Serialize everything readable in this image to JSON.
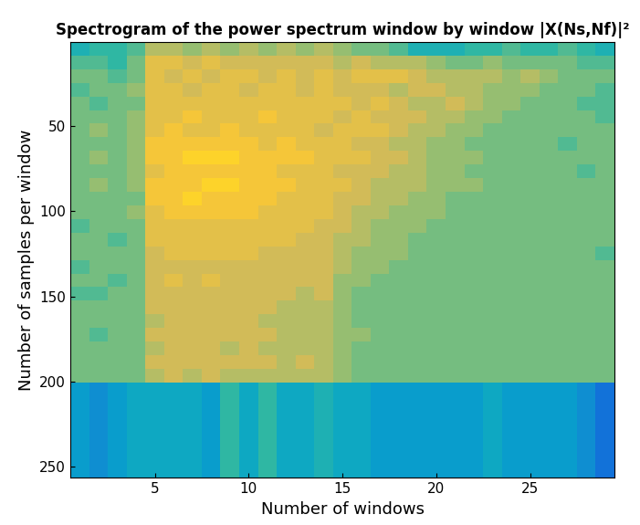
{
  "chart_data": {
    "type": "heatmap",
    "title": "Spectrogram of the power spectrum window by window |X(Ns,Nf)|²",
    "x_label": "Number of windows",
    "y_label": "Number of samples per window",
    "xlim": [
      0.5,
      29.5
    ],
    "ylim": [
      256.5,
      0.5
    ],
    "xticks": [
      5,
      10,
      15,
      20,
      25
    ],
    "yticks": [
      50,
      100,
      150,
      200,
      250
    ],
    "grid": false,
    "x_edges": [
      0.5,
      1.5,
      2.5,
      3.5,
      4.5,
      5.5,
      6.5,
      7.5,
      8.5,
      9.5,
      10.5,
      11.5,
      12.5,
      13.5,
      14.5,
      15.5,
      16.5,
      17.5,
      18.5,
      19.5,
      20.5,
      21.5,
      22.5,
      23.5,
      24.5,
      25.5,
      26.5,
      27.5,
      28.5,
      29.5
    ],
    "y_edges": [
      0.5,
      8.5,
      16.5,
      24.5,
      32.5,
      40.5,
      48.5,
      56.5,
      64.5,
      72.5,
      80.5,
      88.5,
      96.5,
      104.5,
      112.5,
      120.5,
      128.5,
      136.5,
      144.5,
      152.5,
      160.5,
      168.5,
      176.5,
      184.5,
      192.5,
      200.5,
      208.5,
      216.5,
      224.5,
      232.5,
      240.5,
      248.5,
      256.5
    ],
    "color_range": [
      0,
      10
    ],
    "cells": [
      [
        4.5,
        5,
        5,
        5.5,
        7,
        7,
        6.5,
        7,
        6.5,
        7,
        6.5,
        7,
        6.5,
        7,
        6.5,
        6,
        6,
        5.5,
        4.5,
        4.5,
        4.5,
        5,
        5,
        5.5,
        5,
        5,
        5.5,
        5,
        4.5
      ],
      [
        5.5,
        5.5,
        5,
        6,
        8,
        8,
        7.5,
        8,
        7.5,
        7.5,
        7.5,
        7.5,
        7.5,
        7.5,
        7,
        7.5,
        7,
        7,
        7,
        6.5,
        6,
        6,
        6.5,
        6,
        6,
        6,
        6,
        5.5,
        5.5
      ],
      [
        6,
        6,
        5.5,
        6,
        8,
        7.5,
        8,
        7.5,
        8,
        8,
        7.5,
        8,
        7.5,
        8,
        7.5,
        8,
        8,
        8,
        7.5,
        7,
        7,
        7,
        7,
        6.5,
        7,
        6.5,
        6,
        6,
        6
      ],
      [
        5.5,
        6,
        6,
        6.5,
        8,
        8,
        7.5,
        8,
        8,
        7.5,
        8,
        8,
        7.5,
        8,
        7.5,
        7.5,
        7.5,
        7,
        7.5,
        7.5,
        7,
        7,
        6.5,
        6.5,
        6.5,
        6,
        6,
        6,
        5.5
      ],
      [
        6,
        5.5,
        6,
        6,
        8,
        8,
        8,
        8,
        8,
        8,
        8,
        8,
        8,
        8,
        8,
        7.5,
        8,
        7.5,
        7,
        7,
        7.5,
        7,
        6.5,
        6.5,
        6,
        6,
        6,
        5.5,
        5.5
      ],
      [
        6,
        6,
        6,
        6.5,
        8,
        8,
        8.5,
        8,
        8,
        8,
        8.5,
        8,
        8,
        8,
        7.5,
        8,
        7.5,
        7.5,
        7.5,
        7,
        7,
        6.5,
        6.5,
        6,
        6,
        6,
        6,
        6,
        5.5
      ],
      [
        6,
        6.5,
        6,
        6.5,
        8,
        8.5,
        8,
        8,
        8.5,
        8,
        8,
        8,
        8,
        7.5,
        8,
        8,
        8,
        7.5,
        7,
        7,
        6.5,
        6.5,
        6,
        6,
        6,
        6,
        6,
        6,
        6
      ],
      [
        6,
        6,
        6,
        6.5,
        8.5,
        8.5,
        8.5,
        8.5,
        8.5,
        8.5,
        8,
        8.5,
        8,
        8,
        8,
        7.5,
        7.5,
        7,
        7,
        6.5,
        6.5,
        6,
        6,
        6,
        6,
        6,
        5.5,
        6,
        6
      ],
      [
        6,
        6.5,
        6,
        6.5,
        8.5,
        8.5,
        9,
        9,
        9,
        8.5,
        8.5,
        8.5,
        8.5,
        8,
        8,
        8,
        7.5,
        7.5,
        7,
        6.5,
        6.5,
        6.5,
        6,
        6,
        6,
        6,
        6,
        6,
        6
      ],
      [
        6,
        6,
        6,
        6.5,
        8,
        8.5,
        8.5,
        8.5,
        8.5,
        8.5,
        8.5,
        8,
        8,
        8,
        7.5,
        7.5,
        7.5,
        7,
        7,
        6.5,
        6.5,
        6,
        6,
        6,
        6,
        6,
        6,
        5.5,
        6
      ],
      [
        6,
        6.5,
        6,
        6.5,
        8.5,
        8.5,
        8.5,
        9,
        9,
        8.5,
        8.5,
        8.5,
        8,
        8,
        8,
        7.5,
        7,
        7,
        7,
        6.5,
        6.5,
        6.5,
        6,
        6,
        6,
        6,
        6,
        6,
        6
      ],
      [
        6,
        6,
        6,
        6,
        8.5,
        8.5,
        9,
        8.5,
        8.5,
        8.5,
        8.5,
        8,
        8,
        8,
        7.5,
        7.5,
        7,
        7,
        6.5,
        6.5,
        6,
        6,
        6,
        6,
        6,
        6,
        6,
        6,
        6
      ],
      [
        6,
        6,
        6,
        6.5,
        8,
        8.5,
        8.5,
        8.5,
        8.5,
        8.5,
        8,
        8,
        8,
        8,
        7.5,
        7,
        7,
        6.5,
        6.5,
        6.5,
        6,
        6,
        6,
        6,
        6,
        6,
        6,
        6,
        6
      ],
      [
        5.5,
        6,
        6,
        6,
        8,
        8,
        8,
        8,
        8,
        8,
        8,
        8,
        8,
        7.5,
        7.5,
        7,
        6.5,
        6.5,
        6.5,
        6,
        6,
        6,
        6,
        6,
        6,
        6,
        6,
        6,
        6
      ],
      [
        6,
        6,
        5.5,
        6,
        8,
        8,
        8,
        8,
        8,
        8,
        8,
        8,
        7.5,
        7.5,
        7,
        7,
        6.5,
        6.5,
        6,
        6,
        6,
        6,
        6,
        6,
        6,
        6,
        6,
        6,
        6
      ],
      [
        6,
        6,
        6,
        6,
        7.5,
        8,
        8,
        8,
        8,
        8,
        7.5,
        7.5,
        7.5,
        7.5,
        7,
        6.5,
        6.5,
        6.5,
        6,
        6,
        6,
        6,
        6,
        6,
        6,
        6,
        6,
        6,
        5.5
      ],
      [
        5.5,
        6,
        6,
        6,
        7.5,
        7.5,
        7.5,
        7.5,
        7.5,
        7.5,
        7.5,
        7.5,
        7.5,
        7.5,
        7,
        6.5,
        6.5,
        6,
        6,
        6,
        6,
        6,
        6,
        6,
        6,
        6,
        6,
        6,
        6
      ],
      [
        6,
        6,
        5.5,
        6,
        7.5,
        8,
        7.5,
        8,
        7.5,
        7.5,
        7.5,
        7.5,
        7.5,
        7.5,
        6.5,
        6.5,
        6,
        6,
        6,
        6,
        6,
        6,
        6,
        6,
        6,
        6,
        6,
        6,
        6
      ],
      [
        5.5,
        5.5,
        6,
        6,
        7.5,
        7.5,
        7.5,
        7.5,
        7.5,
        7.5,
        7.5,
        7.5,
        7,
        7.5,
        6.5,
        6,
        6,
        6,
        6,
        6,
        6,
        6,
        6,
        6,
        6,
        6,
        6,
        6,
        6
      ],
      [
        6,
        6,
        6,
        6,
        7.5,
        7.5,
        7.5,
        7.5,
        7.5,
        7.5,
        7.5,
        7,
        7,
        7,
        6.5,
        6,
        6,
        6,
        6,
        6,
        6,
        6,
        6,
        6,
        6,
        6,
        6,
        6,
        6
      ],
      [
        6,
        6,
        6,
        6,
        7,
        7.5,
        7.5,
        7.5,
        7.5,
        7.5,
        7,
        7,
        7,
        7,
        6.5,
        6,
        6,
        6,
        6,
        6,
        6,
        6,
        6,
        6,
        6,
        6,
        6,
        6,
        6
      ],
      [
        6,
        5.5,
        6,
        6,
        7.5,
        7.5,
        7.5,
        7.5,
        7.5,
        7.5,
        7.5,
        7,
        7,
        7,
        6.5,
        6.5,
        6,
        6,
        6,
        6,
        6,
        6,
        6,
        6,
        6,
        6,
        6,
        6,
        6
      ],
      [
        6,
        6,
        6,
        6,
        7,
        7.5,
        7.5,
        7.5,
        7,
        7.5,
        7,
        7,
        7,
        7,
        6.5,
        6,
        6,
        6,
        6,
        6,
        6,
        6,
        6,
        6,
        6,
        6,
        6,
        6,
        6
      ],
      [
        6,
        6,
        6,
        6,
        7.5,
        7.5,
        7.5,
        7.5,
        7.5,
        7.5,
        7.5,
        7,
        7.5,
        7,
        6.5,
        6,
        6,
        6,
        6,
        6,
        6,
        6,
        6,
        6,
        6,
        6,
        6,
        6,
        6
      ],
      [
        6,
        6,
        6,
        6,
        7,
        7.5,
        7,
        7.5,
        7,
        7,
        7,
        7,
        7,
        7,
        6.5,
        6,
        6,
        6,
        6,
        6,
        6,
        6,
        6,
        6,
        6,
        6,
        6,
        6,
        6
      ],
      [
        3.5,
        3,
        3.5,
        4,
        4,
        4,
        4,
        3.5,
        5,
        4,
        5,
        4,
        4,
        4.5,
        4,
        4,
        3.5,
        3.5,
        3.5,
        3.5,
        3.5,
        3.5,
        4,
        3.5,
        3.5,
        3.5,
        3.5,
        3,
        2
      ],
      [
        3.5,
        3,
        3.5,
        4,
        4,
        4,
        4,
        3.5,
        5,
        4,
        5,
        4,
        4,
        4.5,
        4,
        4,
        3.5,
        3.5,
        3.5,
        3.5,
        3.5,
        3.5,
        4,
        3.5,
        3.5,
        3.5,
        3.5,
        3,
        2
      ],
      [
        3.5,
        3,
        3.5,
        4,
        4,
        4,
        4,
        3.5,
        5,
        4,
        5,
        4,
        4,
        4.5,
        4,
        4,
        3.5,
        3.5,
        3.5,
        3.5,
        3.5,
        3.5,
        4,
        3.5,
        3.5,
        3.5,
        3.5,
        3,
        2
      ],
      [
        3.5,
        3,
        3.5,
        4,
        4,
        4,
        4,
        3.5,
        5,
        4,
        5,
        4,
        4,
        4.5,
        4,
        4,
        3.5,
        3.5,
        3.5,
        3.5,
        3.5,
        3.5,
        4,
        3.5,
        3.5,
        3.5,
        3.5,
        3,
        2
      ],
      [
        3.5,
        3,
        3.5,
        4,
        4,
        4,
        4,
        3.5,
        5,
        4,
        5,
        4,
        4,
        4.5,
        4,
        4,
        3.5,
        3.5,
        3.5,
        3.5,
        3.5,
        3.5,
        4,
        3.5,
        3.5,
        3.5,
        3.5,
        3,
        2
      ],
      [
        3.5,
        3,
        3.5,
        4,
        4,
        4,
        4,
        3.5,
        5,
        4,
        5,
        4,
        4,
        4.5,
        4,
        4,
        3.5,
        3.5,
        3.5,
        3.5,
        3.5,
        3.5,
        4,
        3.5,
        3.5,
        3.5,
        3.5,
        3,
        2
      ],
      [
        3.5,
        3,
        3.5,
        4,
        4,
        4,
        4,
        3.5,
        5,
        4,
        5,
        4,
        4,
        4.5,
        4,
        4,
        3.5,
        3.5,
        3.5,
        3.5,
        3.5,
        3.5,
        4,
        3.5,
        3.5,
        3.5,
        3.5,
        3,
        2
      ]
    ]
  }
}
